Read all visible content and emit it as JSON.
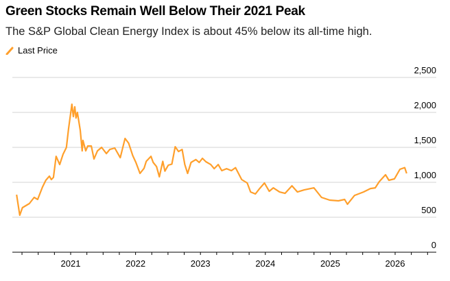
{
  "header": {
    "title": "Green Stocks Remain Well Below Their 2021 Peak",
    "subtitle": "The S&P Global Clean Energy Index is about 45% below its all-time high."
  },
  "chart_data": {
    "type": "line",
    "title": "Green Stocks Remain Well Below Their 2021 Peak",
    "subtitle": "The S&P Global Clean Energy Index is about 45% below its all-time high.",
    "xlabel": "",
    "ylabel": "",
    "ylim": [
      0,
      2500
    ],
    "xlim": [
      "2020-01-15",
      "2026-08-31"
    ],
    "grid": true,
    "legend": "top-left",
    "y_ticks": [
      "0",
      "500",
      "1,000",
      "1,500",
      "2,000",
      "2,500"
    ],
    "y_tick_values": [
      0,
      500,
      1000,
      1500,
      2000,
      2500
    ],
    "x_ticks": [
      "2021",
      "2022",
      "2023",
      "2024",
      "2025",
      "2026"
    ],
    "series": [
      {
        "name": "Last Price",
        "color": "#ff9f2b",
        "points": [
          [
            "2020-03-02",
            823
          ],
          [
            "2020-03-20",
            529
          ],
          [
            "2020-04-04",
            637
          ],
          [
            "2020-05-13",
            696
          ],
          [
            "2020-06-09",
            784
          ],
          [
            "2020-06-29",
            755
          ],
          [
            "2020-07-26",
            931
          ],
          [
            "2020-08-14",
            1029
          ],
          [
            "2020-09-03",
            1088
          ],
          [
            "2020-09-14",
            1039
          ],
          [
            "2020-09-26",
            1070
          ],
          [
            "2020-10-11",
            1372
          ],
          [
            "2020-10-31",
            1254
          ],
          [
            "2020-11-19",
            1401
          ],
          [
            "2020-12-08",
            1499
          ],
          [
            "2020-12-20",
            1764
          ],
          [
            "2021-01-08",
            2117
          ],
          [
            "2021-01-16",
            1940
          ],
          [
            "2021-01-24",
            2080
          ],
          [
            "2021-01-31",
            1920
          ],
          [
            "2021-02-08",
            2000
          ],
          [
            "2021-02-24",
            1744
          ],
          [
            "2021-03-07",
            1450
          ],
          [
            "2021-03-11",
            1600
          ],
          [
            "2021-03-27",
            1450
          ],
          [
            "2021-04-07",
            1520
          ],
          [
            "2021-04-27",
            1520
          ],
          [
            "2021-05-12",
            1333
          ],
          [
            "2021-06-01",
            1450
          ],
          [
            "2021-06-24",
            1500
          ],
          [
            "2021-07-21",
            1411
          ],
          [
            "2021-08-09",
            1470
          ],
          [
            "2021-09-06",
            1490
          ],
          [
            "2021-10-07",
            1352
          ],
          [
            "2021-11-03",
            1627
          ],
          [
            "2021-11-23",
            1560
          ],
          [
            "2021-12-16",
            1382
          ],
          [
            "2022-01-03",
            1284
          ],
          [
            "2022-01-26",
            1127
          ],
          [
            "2022-02-18",
            1200
          ],
          [
            "2022-03-02",
            1300
          ],
          [
            "2022-03-29",
            1372
          ],
          [
            "2022-04-10",
            1284
          ],
          [
            "2022-04-29",
            1225
          ],
          [
            "2022-05-15",
            1078
          ],
          [
            "2022-06-03",
            1300
          ],
          [
            "2022-06-15",
            1160
          ],
          [
            "2022-07-04",
            1245
          ],
          [
            "2022-07-24",
            1260
          ],
          [
            "2022-08-12",
            1509
          ],
          [
            "2022-08-31",
            1440
          ],
          [
            "2022-09-20",
            1470
          ],
          [
            "2022-10-05",
            1254
          ],
          [
            "2022-10-21",
            1127
          ],
          [
            "2022-11-09",
            1284
          ],
          [
            "2022-12-06",
            1325
          ],
          [
            "2022-12-25",
            1284
          ],
          [
            "2023-01-12",
            1343
          ],
          [
            "2023-02-01",
            1294
          ],
          [
            "2023-02-28",
            1254
          ],
          [
            "2023-03-19",
            1195
          ],
          [
            "2023-04-11",
            1254
          ],
          [
            "2023-05-01",
            1167
          ],
          [
            "2023-05-28",
            1195
          ],
          [
            "2023-06-24",
            1167
          ],
          [
            "2023-07-17",
            1210
          ],
          [
            "2023-08-21",
            1039
          ],
          [
            "2023-09-21",
            990
          ],
          [
            "2023-10-10",
            862
          ],
          [
            "2023-11-06",
            833
          ],
          [
            "2023-11-30",
            911
          ],
          [
            "2023-12-27",
            990
          ],
          [
            "2024-01-23",
            872
          ],
          [
            "2024-02-15",
            921
          ],
          [
            "2024-03-21",
            862
          ],
          [
            "2024-04-21",
            842
          ],
          [
            "2024-05-30",
            950
          ],
          [
            "2024-06-30",
            862
          ],
          [
            "2024-08-07",
            891
          ],
          [
            "2024-10-01",
            921
          ],
          [
            "2024-11-13",
            784
          ],
          [
            "2024-12-29",
            745
          ],
          [
            "2025-02-16",
            735
          ],
          [
            "2025-03-23",
            755
          ],
          [
            "2025-04-08",
            686
          ],
          [
            "2025-05-18",
            813
          ],
          [
            "2025-07-07",
            862
          ],
          [
            "2025-08-15",
            911
          ],
          [
            "2025-09-11",
            921
          ],
          [
            "2025-10-04",
            1010
          ],
          [
            "2025-11-08",
            1108
          ],
          [
            "2025-11-27",
            1029
          ],
          [
            "2025-12-28",
            1049
          ],
          [
            "2026-01-28",
            1186
          ],
          [
            "2026-02-24",
            1210
          ],
          [
            "2026-03-07",
            1127
          ]
        ]
      }
    ]
  }
}
